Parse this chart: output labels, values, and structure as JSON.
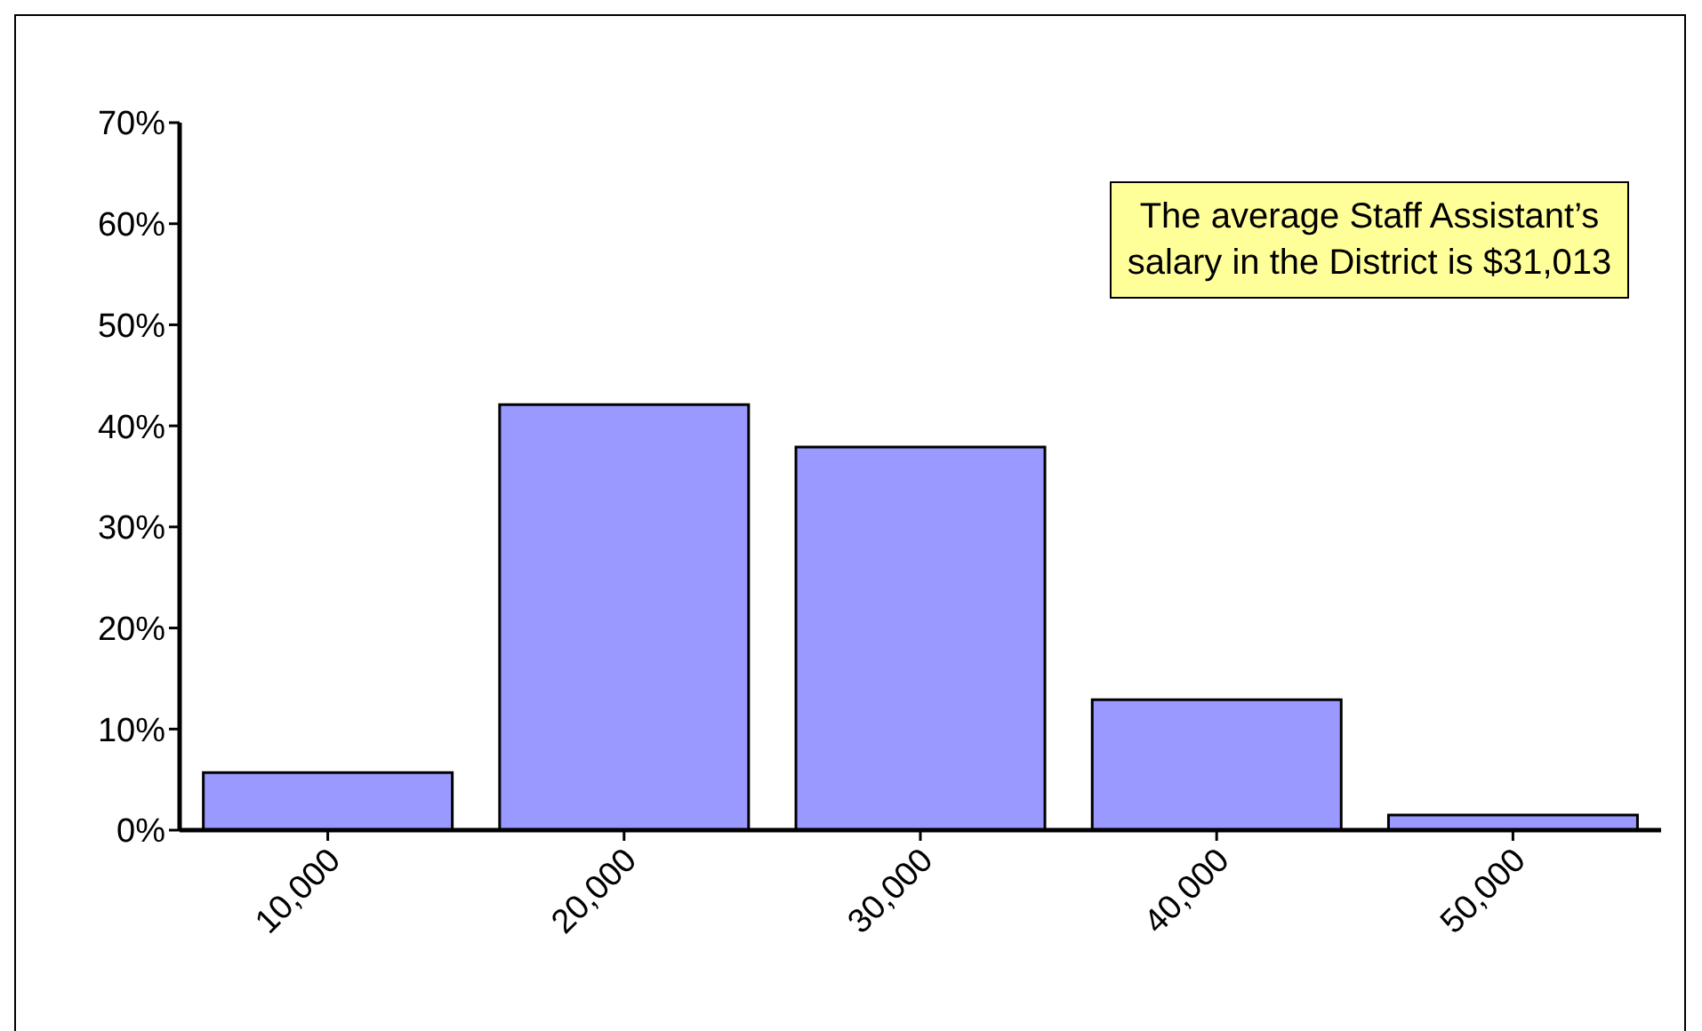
{
  "chart_data": {
    "type": "bar",
    "categories": [
      "10,000",
      "20,000",
      "30,000",
      "40,000",
      "50,000"
    ],
    "values": [
      5.7,
      42.1,
      37.9,
      12.9,
      1.5
    ],
    "color": "#9999ff",
    "ylim": [
      0,
      70
    ],
    "yticks": [
      {
        "value": 0,
        "label": "0%"
      },
      {
        "value": 10,
        "label": "10%"
      },
      {
        "value": 20,
        "label": "20%"
      },
      {
        "value": 30,
        "label": "30%"
      },
      {
        "value": 40,
        "label": "40%"
      },
      {
        "value": 50,
        "label": "50%"
      },
      {
        "value": 60,
        "label": "60%"
      },
      {
        "value": 70,
        "label": "70%"
      }
    ],
    "annotations": [
      "The average Staff Assistant’s salary in the District is $31,013"
    ],
    "grid": false,
    "legend": false
  }
}
